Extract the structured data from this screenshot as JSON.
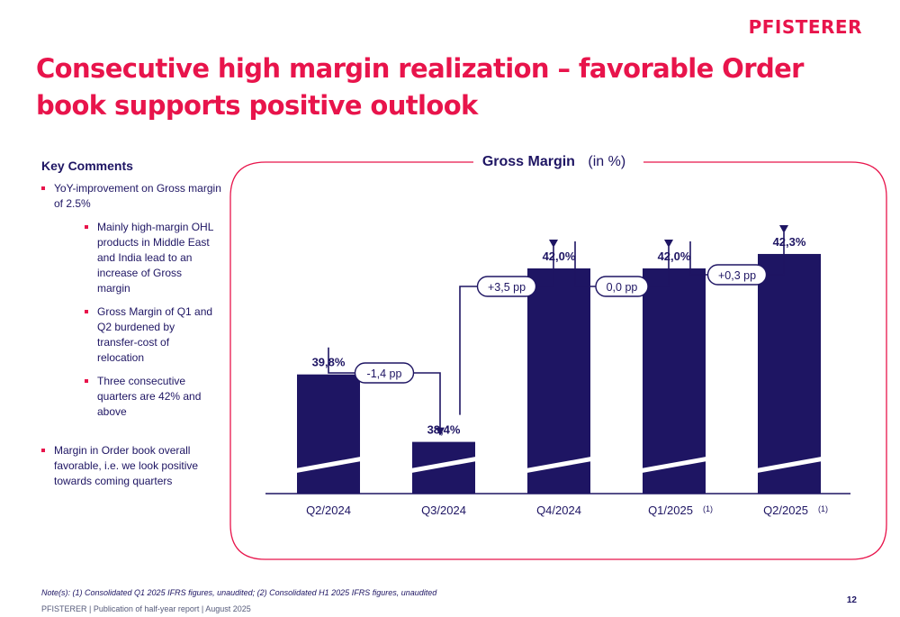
{
  "brand": {
    "logo_text": "PFISTERER",
    "accent": "#e8144b",
    "navy": "#1e1563"
  },
  "title": "Consecutive high margin realization – favorable Order book supports positive outlook",
  "comments": {
    "heading": "Key Comments",
    "items": [
      "YoY-improvement on Gross margin of 2.5%",
      "Mainly high-margin OHL products in Middle East and India lead to an increase of Gross margin",
      "Gross Margin of Q1 and Q2 burdened by transfer-cost of relocation",
      "Three consecutive quarters are 42% and above",
      "Margin in Order book overall favorable, i.e. we look positive towards coming quarters"
    ]
  },
  "chart_data": {
    "type": "bar",
    "title": "Gross Margin",
    "title_unit": "(in %)",
    "categories": [
      "Q2/2024",
      "Q3/2024",
      "Q4/2024",
      "Q1/2025",
      "Q2/2025"
    ],
    "category_notes": [
      "",
      "",
      "",
      "(1)",
      "(1)"
    ],
    "values": [
      39.8,
      38.4,
      42.0,
      42.0,
      42.3
    ],
    "value_labels": [
      "39,8%",
      "38,4%",
      "42,0%",
      "42,0%",
      "42,3%"
    ],
    "axis_break": true,
    "changes": [
      "-1,4 pp",
      "+3,5 pp",
      "0,0 pp",
      "+0,3 pp"
    ],
    "bar_color": "#1e1563",
    "frame_color": "#e8144b"
  },
  "note": "Note(s): (1) Consolidated Q1 2025 IFRS figures, unaudited; (2) Consolidated H1 2025 IFRS figures, unaudited",
  "footer": "PFISTERER | Publication of half-year report | August 2025",
  "page_number": "12"
}
